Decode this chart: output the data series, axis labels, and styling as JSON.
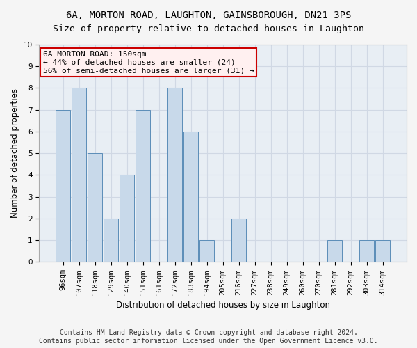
{
  "title": "6A, MORTON ROAD, LAUGHTON, GAINSBOROUGH, DN21 3PS",
  "subtitle": "Size of property relative to detached houses in Laughton",
  "xlabel": "Distribution of detached houses by size in Laughton",
  "ylabel": "Number of detached properties",
  "footnote1": "Contains HM Land Registry data © Crown copyright and database right 2024.",
  "footnote2": "Contains public sector information licensed under the Open Government Licence v3.0.",
  "annotation_line1": "6A MORTON ROAD: 150sqm",
  "annotation_line2": "← 44% of detached houses are smaller (24)",
  "annotation_line3": "56% of semi-detached houses are larger (31) →",
  "categories": [
    "96sqm",
    "107sqm",
    "118sqm",
    "129sqm",
    "140sqm",
    "151sqm",
    "161sqm",
    "172sqm",
    "183sqm",
    "194sqm",
    "205sqm",
    "216sqm",
    "227sqm",
    "238sqm",
    "249sqm",
    "260sqm",
    "270sqm",
    "281sqm",
    "292sqm",
    "303sqm",
    "314sqm"
  ],
  "values": [
    7,
    8,
    5,
    2,
    4,
    7,
    0,
    8,
    6,
    1,
    0,
    2,
    0,
    0,
    0,
    0,
    0,
    1,
    0,
    1,
    1
  ],
  "bar_color": "#c8d9ea",
  "bar_edge_color": "#5b8db8",
  "ylim": [
    0,
    10
  ],
  "yticks": [
    0,
    1,
    2,
    3,
    4,
    5,
    6,
    7,
    8,
    9,
    10
  ],
  "annotation_box_facecolor": "#fff0f0",
  "annotation_box_edge": "#cc0000",
  "grid_color": "#d0d8e4",
  "background_color": "#e8eef4",
  "figure_background": "#f5f5f5",
  "title_fontsize": 10,
  "axis_label_fontsize": 8.5,
  "tick_fontsize": 7.5,
  "footnote_fontsize": 7,
  "annotation_fontsize": 8
}
